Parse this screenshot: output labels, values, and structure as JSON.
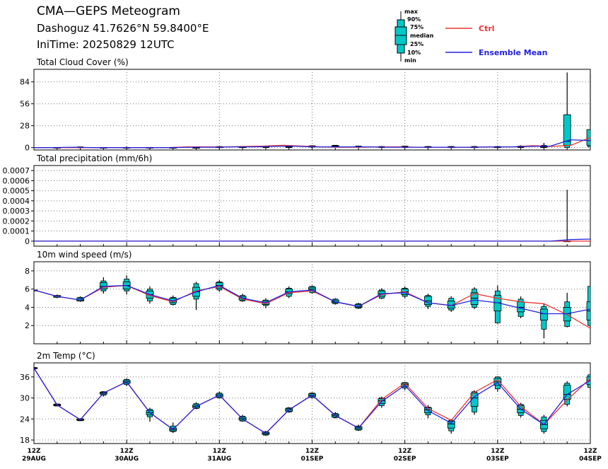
{
  "header": {
    "title": "CMA—GEPS Meteogram",
    "location": "Dashoguz 41.7626°N 59.8400°E",
    "init_time": "IniTime: 20250829 12UTC"
  },
  "legend": {
    "box_labels": [
      "max",
      "90%",
      "75%",
      "median",
      "25%",
      "10%",
      "min"
    ],
    "ctrl_label": "Ctrl",
    "mean_label": "Ensemble Mean",
    "ctrl_color": "#ee3333",
    "mean_color": "#2222dd",
    "box_color": "#00c8c8"
  },
  "x_axis": {
    "tick_labels": [
      {
        "top": "12Z",
        "bottom": "29AUG"
      },
      {
        "top": "12Z",
        "bottom": "30AUG"
      },
      {
        "top": "12Z",
        "bottom": "31AUG"
      },
      {
        "top": "12Z",
        "bottom": "01SEP"
      },
      {
        "top": "12Z",
        "bottom": "02SEP"
      },
      {
        "top": "12Z",
        "bottom": "03SEP"
      },
      {
        "top": "12Z",
        "bottom": "04SEP"
      }
    ]
  },
  "chart_data": [
    {
      "type": "box-line",
      "title": "Total Cloud Cover (%)",
      "ylim": [
        -3,
        100
      ],
      "yticks": [
        "0",
        "28",
        "56",
        "84"
      ],
      "ytick_values": [
        0,
        28,
        56,
        84
      ],
      "lead_hours": [
        6,
        12,
        18,
        24,
        30,
        36,
        42,
        48,
        54,
        60,
        66,
        72,
        78,
        84,
        90,
        96,
        102,
        108,
        114,
        120,
        126,
        132,
        138,
        144
      ],
      "boxes": [
        {
          "min": 0,
          "p10": 0,
          "p25": 0,
          "median": 0,
          "p75": 0,
          "p90": 0,
          "max": 0
        },
        {
          "min": 0,
          "p10": 0,
          "p25": 0,
          "median": 0,
          "p75": 0.5,
          "p90": 1,
          "max": 1
        },
        {
          "min": 0,
          "p10": 0,
          "p25": 0,
          "median": 0,
          "p75": 0,
          "p90": 0,
          "max": 0
        },
        {
          "min": 0,
          "p10": 0,
          "p25": 0,
          "median": 0,
          "p75": 0,
          "p90": 0,
          "max": 0
        },
        {
          "min": 0,
          "p10": 0,
          "p25": 0,
          "median": 0,
          "p75": 0,
          "p90": 0,
          "max": 0
        },
        {
          "min": 0,
          "p10": 0,
          "p25": 0,
          "median": 0,
          "p75": 0,
          "p90": 0,
          "max": 0
        },
        {
          "min": 0,
          "p10": 0,
          "p25": 0,
          "median": 0,
          "p75": 0,
          "p90": 0,
          "max": 0
        },
        {
          "min": 0,
          "p10": 0,
          "p25": 0,
          "median": 0.5,
          "p75": 1,
          "p90": 1.5,
          "max": 2
        },
        {
          "min": 0,
          "p10": 0,
          "p25": 0,
          "median": 0.5,
          "p75": 1,
          "p90": 1.5,
          "max": 2
        },
        {
          "min": 0,
          "p10": 0,
          "p25": 0.5,
          "median": 1,
          "p75": 1.5,
          "p90": 2,
          "max": 2
        },
        {
          "min": 0,
          "p10": 0,
          "p25": 0.5,
          "median": 1,
          "p75": 1.5,
          "p90": 2,
          "max": 3
        },
        {
          "min": 0,
          "p10": 0.5,
          "p25": 1,
          "median": 1.5,
          "p75": 2,
          "p90": 2.5,
          "max": 3
        },
        {
          "min": 0,
          "p10": 0.5,
          "p25": 1,
          "median": 2,
          "p75": 2.5,
          "p90": 3,
          "max": 3
        },
        {
          "min": 0,
          "p10": 0.5,
          "p25": 1,
          "median": 1,
          "p75": 1.5,
          "p90": 2,
          "max": 2
        },
        {
          "min": 0,
          "p10": 0,
          "p25": 0.5,
          "median": 0.5,
          "p75": 1,
          "p90": 1.5,
          "max": 2
        },
        {
          "min": 0,
          "p10": 0,
          "p25": 0.5,
          "median": 1,
          "p75": 1.5,
          "p90": 2,
          "max": 2
        },
        {
          "min": 0,
          "p10": 0,
          "p25": 0.5,
          "median": 1,
          "p75": 1,
          "p90": 1.5,
          "max": 2
        },
        {
          "min": 0,
          "p10": 0,
          "p25": 0,
          "median": 0.5,
          "p75": 1,
          "p90": 1.5,
          "max": 2
        },
        {
          "min": 0,
          "p10": 0,
          "p25": 0,
          "median": 0.5,
          "p75": 1,
          "p90": 1.5,
          "max": 2
        },
        {
          "min": 0,
          "p10": 0,
          "p25": 0,
          "median": 0.5,
          "p75": 1,
          "p90": 1.5,
          "max": 2
        },
        {
          "min": 0,
          "p10": 0,
          "p25": 0.5,
          "median": 1,
          "p75": 1.5,
          "p90": 2,
          "max": 3
        },
        {
          "min": 0,
          "p10": 0,
          "p25": 0.5,
          "median": 1,
          "p75": 2,
          "p90": 3,
          "max": 6
        },
        {
          "min": 0,
          "p10": 0,
          "p25": 3,
          "median": 8,
          "p75": 42,
          "p90": 42,
          "max": 96
        },
        {
          "min": 0,
          "p10": 1,
          "p25": 3,
          "median": 9,
          "p75": 23,
          "p90": 23,
          "max": 95
        }
      ],
      "ctrl_start": 0,
      "ctrl": [
        0,
        0,
        0,
        0,
        0,
        0,
        0,
        0,
        1,
        1,
        1,
        1.5,
        2,
        3,
        2,
        1,
        0.5,
        0.5,
        1,
        1,
        0.5,
        0.5,
        0.5,
        0.5,
        1,
        1,
        2.5,
        1.5,
        3,
        13
      ],
      "mean_start": 0,
      "mean": [
        0,
        0,
        0.5,
        0,
        0,
        0,
        0,
        0,
        0.5,
        0.5,
        1,
        1,
        1.5,
        2,
        1,
        1,
        1,
        1,
        0.5,
        0.5,
        0.5,
        0.5,
        0.5,
        1,
        1,
        1.5,
        2,
        10,
        9
      ]
    },
    {
      "type": "box-line",
      "title": "Total precipitation (mm/6h)",
      "ylim": [
        -5e-05,
        0.00075
      ],
      "yticks": [
        "0",
        "0.0001",
        "0.0002",
        "0.0003",
        "0.0004",
        "0.0005",
        "0.0006",
        "0.0007"
      ],
      "ytick_values": [
        0,
        0.0001,
        0.0002,
        0.0003,
        0.0004,
        0.0005,
        0.0006,
        0.0007
      ],
      "lead_hours": [
        138
      ],
      "boxes": [
        {
          "min": 0,
          "p10": 0,
          "p25": 0,
          "median": 0,
          "p75": 0,
          "p90": 0,
          "max": 0.00051
        }
      ],
      "ctrl_start": 0,
      "ctrl": [
        0,
        0,
        0,
        0,
        0,
        0,
        0,
        0,
        0,
        0,
        0,
        0,
        0,
        0,
        0,
        0,
        0,
        0,
        0,
        0,
        0,
        0,
        0,
        0,
        0,
        0,
        0,
        0,
        0
      ],
      "mean_start": 0,
      "mean": [
        0,
        0,
        0,
        0,
        0,
        0,
        0,
        0,
        0,
        0,
        0,
        0,
        0,
        0,
        0,
        0,
        0,
        0,
        0,
        0,
        0,
        0,
        0,
        0,
        0,
        0,
        0,
        1.5e-05,
        2e-05
      ]
    },
    {
      "type": "box-line",
      "title": "10m wind speed (m/s)",
      "ylim": [
        0,
        9
      ],
      "yticks": [
        "2",
        "4",
        "6",
        "8"
      ],
      "ytick_values": [
        2,
        4,
        6,
        8
      ],
      "lead_hours": [
        0,
        6,
        12,
        18,
        24,
        30,
        36,
        42,
        48,
        54,
        60,
        66,
        72,
        78,
        84,
        90,
        96,
        102,
        108,
        114,
        120,
        126,
        132,
        138,
        144
      ],
      "boxes": [
        {
          "min": 5.8,
          "p10": 5.8,
          "p25": 5.8,
          "median": 5.9,
          "p75": 5.9,
          "p90": 5.9,
          "max": 6.0
        },
        {
          "min": 5.0,
          "p10": 5.1,
          "p25": 5.1,
          "median": 5.2,
          "p75": 5.3,
          "p90": 5.3,
          "max": 5.4
        },
        {
          "min": 4.6,
          "p10": 4.7,
          "p25": 4.7,
          "median": 4.8,
          "p75": 5.0,
          "p90": 5.1,
          "max": 5.2
        },
        {
          "min": 5.5,
          "p10": 5.8,
          "p25": 6.0,
          "median": 6.3,
          "p75": 6.7,
          "p90": 6.9,
          "max": 7.3
        },
        {
          "min": 5.4,
          "p10": 5.8,
          "p25": 6.0,
          "median": 6.4,
          "p75": 6.8,
          "p90": 7.1,
          "max": 7.5
        },
        {
          "min": 4.4,
          "p10": 4.7,
          "p25": 5.0,
          "median": 5.4,
          "p75": 5.8,
          "p90": 6.0,
          "max": 6.3
        },
        {
          "min": 4.2,
          "p10": 4.3,
          "p25": 4.5,
          "median": 4.7,
          "p75": 5.0,
          "p90": 5.1,
          "max": 5.3
        },
        {
          "min": 3.7,
          "p10": 4.9,
          "p25": 5.2,
          "median": 5.7,
          "p75": 6.2,
          "p90": 6.6,
          "max": 6.8
        },
        {
          "min": 5.7,
          "p10": 5.9,
          "p25": 6.1,
          "median": 6.4,
          "p75": 6.7,
          "p90": 6.8,
          "max": 7.0
        },
        {
          "min": 4.6,
          "p10": 4.7,
          "p25": 4.8,
          "median": 5.0,
          "p75": 5.2,
          "p90": 5.3,
          "max": 5.5
        },
        {
          "min": 3.9,
          "p10": 4.2,
          "p25": 4.3,
          "median": 4.5,
          "p75": 4.7,
          "p90": 4.8,
          "max": 5.0
        },
        {
          "min": 5.0,
          "p10": 5.2,
          "p25": 5.5,
          "median": 5.7,
          "p75": 6.0,
          "p90": 6.1,
          "max": 6.3
        },
        {
          "min": 5.5,
          "p10": 5.6,
          "p25": 5.8,
          "median": 6.0,
          "p75": 6.2,
          "p90": 6.3,
          "max": 6.4
        },
        {
          "min": 4.3,
          "p10": 4.4,
          "p25": 4.5,
          "median": 4.6,
          "p75": 4.8,
          "p90": 4.9,
          "max": 5.0
        },
        {
          "min": 3.8,
          "p10": 3.9,
          "p25": 4.0,
          "median": 4.1,
          "p75": 4.3,
          "p90": 4.4,
          "max": 4.5
        },
        {
          "min": 4.9,
          "p10": 5.0,
          "p25": 5.2,
          "median": 5.5,
          "p75": 5.8,
          "p90": 5.9,
          "max": 6.1
        },
        {
          "min": 5.0,
          "p10": 5.2,
          "p25": 5.4,
          "median": 5.7,
          "p75": 6.0,
          "p90": 6.1,
          "max": 6.3
        },
        {
          "min": 3.8,
          "p10": 4.1,
          "p25": 4.3,
          "median": 4.7,
          "p75": 5.2,
          "p90": 5.3,
          "max": 5.5
        },
        {
          "min": 3.5,
          "p10": 3.7,
          "p25": 3.9,
          "median": 4.2,
          "p75": 4.7,
          "p90": 5.0,
          "max": 5.2
        },
        {
          "min": 3.8,
          "p10": 4.0,
          "p25": 4.3,
          "median": 5.0,
          "p75": 5.6,
          "p90": 6.0,
          "max": 6.2
        },
        {
          "min": 2.2,
          "p10": 2.3,
          "p25": 3.6,
          "median": 4.5,
          "p75": 5.3,
          "p90": 5.8,
          "max": 6.4
        },
        {
          "min": 2.8,
          "p10": 3.0,
          "p25": 3.5,
          "median": 4.0,
          "p75": 4.6,
          "p90": 4.9,
          "max": 5.2
        },
        {
          "min": 0.6,
          "p10": 1.6,
          "p25": 2.6,
          "median": 3.3,
          "p75": 3.8,
          "p90": 4.1,
          "max": 4.4
        },
        {
          "min": 1.8,
          "p10": 1.9,
          "p25": 2.5,
          "median": 3.3,
          "p75": 4.0,
          "p90": 4.6,
          "max": 5.6
        },
        {
          "min": 1.8,
          "p10": 2.0,
          "p25": 2.6,
          "median": 3.6,
          "p75": 4.6,
          "p90": 6.3,
          "max": 8.2
        }
      ],
      "ctrl_start": 0,
      "ctrl": [
        5.9,
        5.2,
        4.8,
        6.2,
        6.4,
        5.3,
        4.6,
        5.8,
        6.3,
        4.9,
        4.4,
        5.6,
        5.8,
        4.6,
        4.1,
        5.4,
        5.7,
        4.5,
        4.2,
        5.5,
        5.0,
        4.6,
        4.4,
        3.2,
        1.7
      ],
      "mean_start": 0,
      "mean": [
        5.9,
        5.2,
        4.8,
        6.3,
        6.4,
        5.4,
        4.7,
        5.7,
        6.4,
        5.0,
        4.5,
        5.7,
        5.9,
        4.6,
        4.1,
        5.5,
        5.6,
        4.5,
        4.2,
        4.8,
        4.5,
        3.9,
        3.3,
        3.3,
        3.8
      ]
    },
    {
      "type": "box-line",
      "title": "2m Temp (°C)",
      "ylim": [
        17,
        40
      ],
      "yticks": [
        "18",
        "24",
        "30",
        "36"
      ],
      "ytick_values": [
        18,
        24,
        30,
        36
      ],
      "lead_hours": [
        0,
        6,
        12,
        18,
        24,
        30,
        36,
        42,
        48,
        54,
        60,
        66,
        72,
        78,
        84,
        90,
        96,
        102,
        108,
        114,
        120,
        126,
        132,
        138,
        144
      ],
      "boxes": [
        {
          "min": 38.2,
          "p10": 38.3,
          "p25": 38.4,
          "median": 38.5,
          "p75": 38.6,
          "p90": 38.7,
          "max": 38.8
        },
        {
          "min": 27.6,
          "p10": 27.7,
          "p25": 27.8,
          "median": 28.0,
          "p75": 28.2,
          "p90": 28.3,
          "max": 28.4
        },
        {
          "min": 23.4,
          "p10": 23.5,
          "p25": 23.6,
          "median": 23.8,
          "p75": 24.0,
          "p90": 24.1,
          "max": 24.2
        },
        {
          "min": 30.4,
          "p10": 30.8,
          "p25": 31.1,
          "median": 31.4,
          "p75": 31.6,
          "p90": 31.8,
          "max": 31.9
        },
        {
          "min": 33.4,
          "p10": 33.8,
          "p25": 34.2,
          "median": 34.6,
          "p75": 35.0,
          "p90": 35.3,
          "max": 35.6
        },
        {
          "min": 23.2,
          "p10": 24.6,
          "p25": 25.2,
          "median": 25.8,
          "p75": 26.4,
          "p90": 26.8,
          "max": 27.2
        },
        {
          "min": 20.0,
          "p10": 20.4,
          "p25": 20.6,
          "median": 21.0,
          "p75": 21.4,
          "p90": 22.0,
          "max": 23.0
        },
        {
          "min": 26.8,
          "p10": 27.0,
          "p25": 27.2,
          "median": 27.6,
          "p75": 28.0,
          "p90": 28.4,
          "max": 28.8
        },
        {
          "min": 29.8,
          "p10": 30.0,
          "p25": 30.3,
          "median": 30.7,
          "p75": 31.1,
          "p90": 31.4,
          "max": 31.8
        },
        {
          "min": 23.2,
          "p10": 23.4,
          "p25": 23.7,
          "median": 24.1,
          "p75": 24.5,
          "p90": 24.8,
          "max": 25.2
        },
        {
          "min": 19.2,
          "p10": 19.4,
          "p25": 19.6,
          "median": 19.9,
          "p75": 20.2,
          "p90": 20.4,
          "max": 20.6
        },
        {
          "min": 25.8,
          "p10": 26.0,
          "p25": 26.2,
          "median": 26.6,
          "p75": 27.0,
          "p90": 27.2,
          "max": 27.4
        },
        {
          "min": 29.8,
          "p10": 30.1,
          "p25": 30.4,
          "median": 30.8,
          "p75": 31.2,
          "p90": 31.4,
          "max": 31.6
        },
        {
          "min": 24.2,
          "p10": 24.4,
          "p25": 24.6,
          "median": 25.0,
          "p75": 25.4,
          "p90": 25.6,
          "max": 26.0
        },
        {
          "min": 20.6,
          "p10": 20.8,
          "p25": 21.0,
          "median": 21.4,
          "p75": 21.8,
          "p90": 22.0,
          "max": 22.4
        },
        {
          "min": 27.2,
          "p10": 27.8,
          "p25": 28.4,
          "median": 29.2,
          "p75": 29.8,
          "p90": 30.0,
          "max": 30.4
        },
        {
          "min": 32.2,
          "p10": 32.8,
          "p25": 33.2,
          "median": 33.8,
          "p75": 34.2,
          "p90": 34.4,
          "max": 34.6
        },
        {
          "min": 24.2,
          "p10": 25.2,
          "p25": 25.8,
          "median": 26.6,
          "p75": 27.2,
          "p90": 27.4,
          "max": 28.0
        },
        {
          "min": 19.8,
          "p10": 20.6,
          "p25": 21.4,
          "median": 22.6,
          "p75": 23.4,
          "p90": 23.6,
          "max": 24.0
        },
        {
          "min": 25.2,
          "p10": 26.0,
          "p25": 27.6,
          "median": 30.0,
          "p75": 31.4,
          "p90": 31.8,
          "max": 32.2
        },
        {
          "min": 31.8,
          "p10": 32.6,
          "p25": 33.6,
          "median": 34.6,
          "p75": 35.6,
          "p90": 36.0,
          "max": 36.2
        },
        {
          "min": 24.4,
          "p10": 25.0,
          "p25": 25.8,
          "median": 26.8,
          "p75": 27.8,
          "p90": 28.2,
          "max": 28.6
        },
        {
          "min": 19.8,
          "p10": 20.4,
          "p25": 21.2,
          "median": 22.4,
          "p75": 23.6,
          "p90": 24.6,
          "max": 25.2
        },
        {
          "min": 27.6,
          "p10": 28.2,
          "p25": 29.6,
          "median": 31.0,
          "p75": 33.6,
          "p90": 34.2,
          "max": 34.8
        },
        {
          "min": 32.4,
          "p10": 33.0,
          "p25": 33.8,
          "median": 35.0,
          "p75": 36.0,
          "p90": 36.6,
          "max": 37.0
        }
      ],
      "ctrl_start": 0,
      "ctrl": [
        38.5,
        28.0,
        23.8,
        31.4,
        34.6,
        25.8,
        21.0,
        27.6,
        30.8,
        24.0,
        19.9,
        26.6,
        30.8,
        25.0,
        21.4,
        29.6,
        34.2,
        27.0,
        23.6,
        31.6,
        35.2,
        27.6,
        22.4,
        29.4,
        35.6
      ],
      "mean_start": 0,
      "mean": [
        38.5,
        28.0,
        23.8,
        31.4,
        34.6,
        25.8,
        21.0,
        27.6,
        30.8,
        24.0,
        19.9,
        26.6,
        30.8,
        25.0,
        21.4,
        29.0,
        33.6,
        26.4,
        22.8,
        30.4,
        34.4,
        26.8,
        22.4,
        31.0,
        35.0
      ]
    }
  ]
}
